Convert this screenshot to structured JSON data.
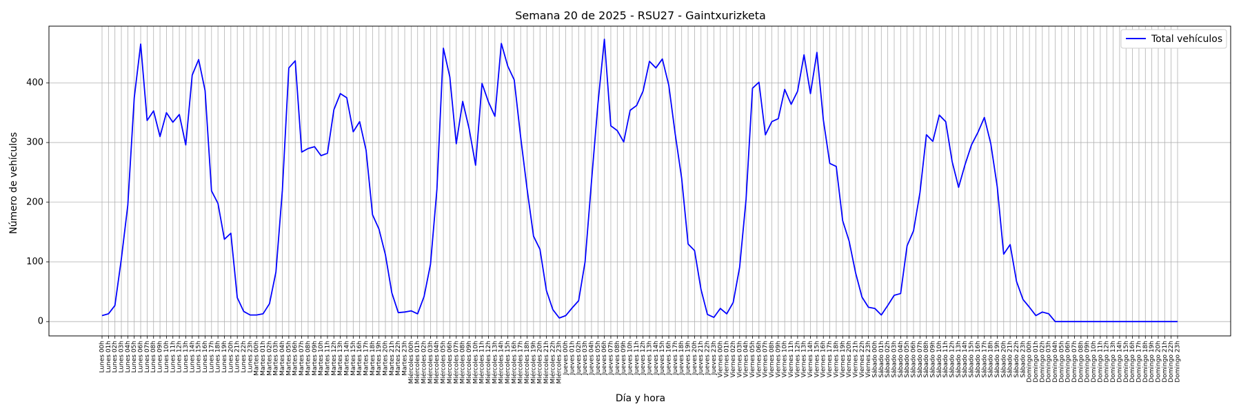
{
  "chart_data": {
    "type": "line",
    "title": "Semana 20 de 2025 - RSU27 - Gaintxurizketa",
    "xlabel": "Día y hora",
    "ylabel": "Número de vehículos",
    "ylim": [
      -24,
      495
    ],
    "yticks": [
      0,
      100,
      200,
      300,
      400
    ],
    "grid": true,
    "legend": {
      "position": "top-right"
    },
    "categories": [
      "Lunes 00h",
      "Lunes 01h",
      "Lunes 02h",
      "Lunes 03h",
      "Lunes 04h",
      "Lunes 05h",
      "Lunes 06h",
      "Lunes 07h",
      "Lunes 08h",
      "Lunes 09h",
      "Lunes 10h",
      "Lunes 11h",
      "Lunes 12h",
      "Lunes 13h",
      "Lunes 14h",
      "Lunes 15h",
      "Lunes 16h",
      "Lunes 17h",
      "Lunes 18h",
      "Lunes 19h",
      "Lunes 20h",
      "Lunes 21h",
      "Lunes 22h",
      "Lunes 23h",
      "Martes 00h",
      "Martes 01h",
      "Martes 02h",
      "Martes 03h",
      "Martes 04h",
      "Martes 05h",
      "Martes 06h",
      "Martes 07h",
      "Martes 08h",
      "Martes 09h",
      "Martes 10h",
      "Martes 11h",
      "Martes 12h",
      "Martes 13h",
      "Martes 14h",
      "Martes 15h",
      "Martes 16h",
      "Martes 17h",
      "Martes 18h",
      "Martes 19h",
      "Martes 20h",
      "Martes 21h",
      "Martes 22h",
      "Martes 23h",
      "Miércoles 00h",
      "Miércoles 01h",
      "Miércoles 02h",
      "Miércoles 03h",
      "Miércoles 04h",
      "Miércoles 05h",
      "Miércoles 06h",
      "Miércoles 07h",
      "Miércoles 08h",
      "Miércoles 09h",
      "Miércoles 10h",
      "Miércoles 11h",
      "Miércoles 12h",
      "Miércoles 13h",
      "Miércoles 14h",
      "Miércoles 15h",
      "Miércoles 16h",
      "Miércoles 17h",
      "Miércoles 18h",
      "Miércoles 19h",
      "Miércoles 20h",
      "Miércoles 21h",
      "Miércoles 22h",
      "Miércoles 23h",
      "Jueves 00h",
      "Jueves 01h",
      "Jueves 02h",
      "Jueves 03h",
      "Jueves 04h",
      "Jueves 05h",
      "Jueves 06h",
      "Jueves 07h",
      "Jueves 08h",
      "Jueves 09h",
      "Jueves 10h",
      "Jueves 11h",
      "Jueves 12h",
      "Jueves 13h",
      "Jueves 14h",
      "Jueves 15h",
      "Jueves 16h",
      "Jueves 17h",
      "Jueves 18h",
      "Jueves 19h",
      "Jueves 20h",
      "Jueves 21h",
      "Jueves 22h",
      "Jueves 23h",
      "Viernes 00h",
      "Viernes 01h",
      "Viernes 02h",
      "Viernes 03h",
      "Viernes 04h",
      "Viernes 05h",
      "Viernes 06h",
      "Viernes 07h",
      "Viernes 08h",
      "Viernes 09h",
      "Viernes 10h",
      "Viernes 11h",
      "Viernes 12h",
      "Viernes 13h",
      "Viernes 14h",
      "Viernes 15h",
      "Viernes 16h",
      "Viernes 17h",
      "Viernes 18h",
      "Viernes 19h",
      "Viernes 20h",
      "Viernes 21h",
      "Viernes 22h",
      "Viernes 23h",
      "Sábado 00h",
      "Sábado 01h",
      "Sábado 02h",
      "Sábado 03h",
      "Sábado 04h",
      "Sábado 05h",
      "Sábado 06h",
      "Sábado 07h",
      "Sábado 08h",
      "Sábado 09h",
      "Sábado 10h",
      "Sábado 11h",
      "Sábado 12h",
      "Sábado 13h",
      "Sábado 14h",
      "Sábado 15h",
      "Sábado 16h",
      "Sábado 17h",
      "Sábado 18h",
      "Sábado 19h",
      "Sábado 20h",
      "Sábado 21h",
      "Sábado 22h",
      "Sábado 23h",
      "Domingo 00h",
      "Domingo 01h",
      "Domingo 02h",
      "Domingo 03h",
      "Domingo 04h",
      "Domingo 05h",
      "Domingo 06h",
      "Domingo 07h",
      "Domingo 08h",
      "Domingo 09h",
      "Domingo 10h",
      "Domingo 11h",
      "Domingo 12h",
      "Domingo 13h",
      "Domingo 14h",
      "Domingo 15h",
      "Domingo 16h",
      "Domingo 17h",
      "Domingo 18h",
      "Domingo 19h",
      "Domingo 20h",
      "Domingo 21h",
      "Domingo 22h",
      "Domingo 23h"
    ],
    "series": [
      {
        "name": "Total vehículos",
        "color": "#0000ff",
        "values": [
          10,
          13,
          27,
          105,
          195,
          375,
          465,
          337,
          353,
          310,
          350,
          334,
          347,
          296,
          413,
          439,
          387,
          219,
          198,
          138,
          148,
          40,
          17,
          11,
          11,
          13,
          30,
          83,
          220,
          425,
          437,
          284,
          290,
          293,
          278,
          282,
          355,
          382,
          375,
          318,
          335,
          287,
          179,
          155,
          112,
          48,
          15,
          16,
          18,
          13,
          42,
          96,
          222,
          458,
          410,
          298,
          369,
          323,
          262,
          399,
          368,
          344,
          466,
          428,
          405,
          309,
          222,
          143,
          121,
          52,
          20,
          6,
          10,
          23,
          35,
          100,
          235,
          365,
          473,
          328,
          320,
          301,
          354,
          362,
          386,
          436,
          425,
          440,
          396,
          314,
          240,
          130,
          119,
          54,
          12,
          7,
          22,
          13,
          32,
          91,
          205,
          391,
          401,
          313,
          335,
          340,
          389,
          364,
          386,
          447,
          382,
          451,
          338,
          265,
          260,
          169,
          135,
          82,
          41,
          24,
          22,
          11,
          27,
          44,
          47,
          127,
          152,
          216,
          313,
          302,
          346,
          335,
          268,
          225,
          263,
          296,
          317,
          342,
          298,
          226,
          113,
          129,
          67,
          37,
          24,
          10,
          16,
          13,
          0,
          0,
          0,
          0,
          0,
          0,
          0,
          0,
          0,
          0,
          0,
          0,
          0,
          0,
          0,
          0,
          0,
          0,
          0,
          0
        ]
      }
    ]
  }
}
